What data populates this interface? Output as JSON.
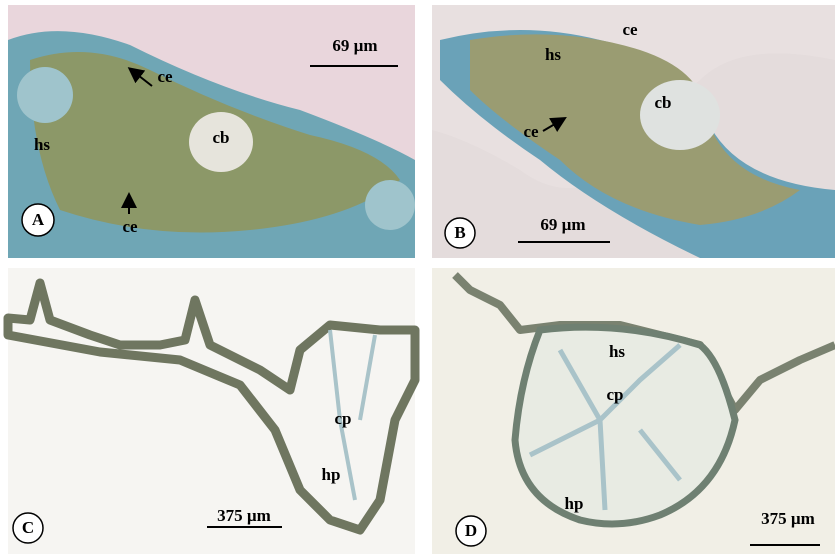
{
  "panels": [
    {
      "letter": "A",
      "scale_bar": "69 µm",
      "labels": [
        "ce",
        "hs",
        "cb",
        "ce"
      ]
    },
    {
      "letter": "B",
      "scale_bar": "69 µm",
      "labels": [
        "ce",
        "hs",
        "cb",
        "ce"
      ]
    },
    {
      "letter": "C",
      "scale_bar": "375 µm",
      "labels": [
        "cp",
        "hp"
      ]
    },
    {
      "letter": "D",
      "scale_bar": "375 µm",
      "labels": [
        "hs",
        "cp",
        "hp"
      ]
    }
  ]
}
